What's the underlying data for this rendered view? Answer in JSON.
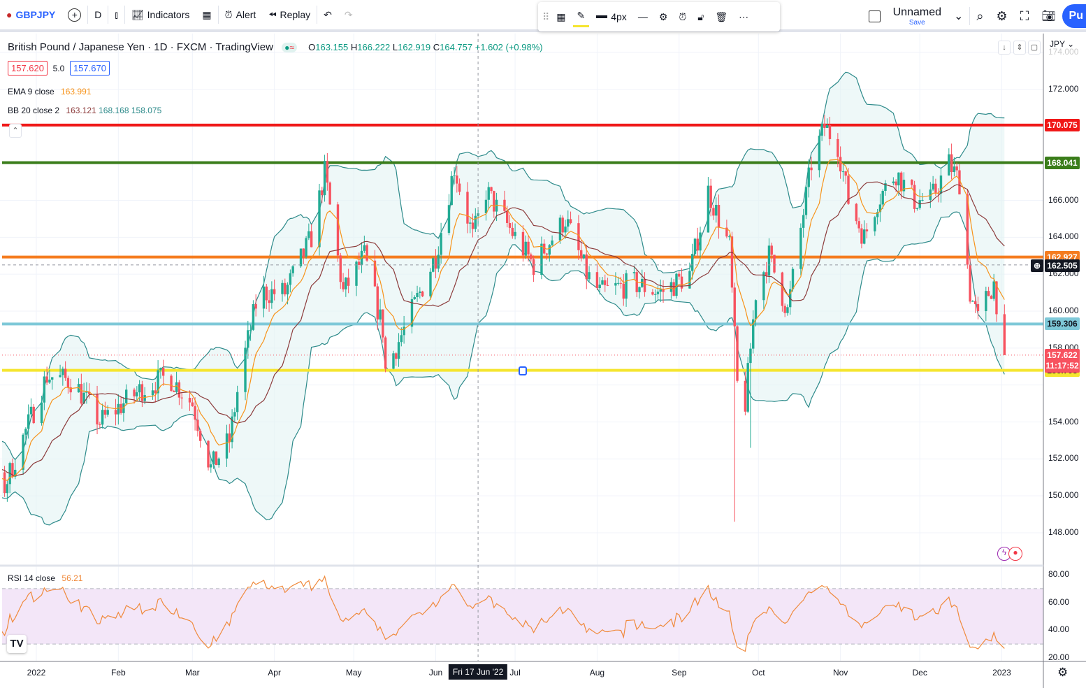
{
  "toolbar": {
    "symbol": "GBPJPY",
    "interval": "D",
    "indicators": "Indicators",
    "alert": "Alert",
    "replay": "Replay"
  },
  "drawing_toolbar": {
    "thickness": "4px"
  },
  "right_toolbar": {
    "layout_name": "Unnamed",
    "save": "Save",
    "publish": "Pu"
  },
  "legend": {
    "title": "British Pound / Japanese Yen · 1D · FXCM · TradingView",
    "ohlc": {
      "o_label": "O",
      "o": "163.155",
      "h_label": "H",
      "h": "166.222",
      "l_label": "L",
      "l": "162.919",
      "c_label": "C",
      "c": "164.757",
      "change": "+1.602 (+0.98%)"
    },
    "bid": "157.620",
    "spread": "5.0",
    "ask": "157.670",
    "ema": {
      "label": "EMA 9 close",
      "value": "163.991"
    },
    "bb": {
      "label": "BB 20 close 2",
      "basis": "163.121",
      "upper": "168.168",
      "lower": "158.075"
    },
    "rsi": {
      "label": "RSI 14 close",
      "value": "56.21"
    }
  },
  "price_axis": {
    "currency": "JPY",
    "labels": [
      "174.000",
      "172.000",
      "166.000",
      "164.000",
      "162.000",
      "160.000",
      "158.000",
      "154.000",
      "152.000",
      "150.000",
      "148.000"
    ]
  },
  "rsi_axis": {
    "labels": [
      "80.00",
      "60.00",
      "40.00",
      "20.00"
    ]
  },
  "hlines": [
    {
      "name": "red",
      "price": "170.075",
      "color": "#f01818"
    },
    {
      "name": "green",
      "price": "168.041",
      "color": "#3a7d1a"
    },
    {
      "name": "orange",
      "price": "162.927",
      "color": "#f57c1f"
    },
    {
      "name": "lightblue",
      "price": "159.306",
      "color": "#7ec8d8"
    },
    {
      "name": "yellow",
      "price": "156.798",
      "color": "#f5e530"
    }
  ],
  "crosshair": {
    "price": "162.505",
    "date_label": "Fri 17 Jun '22",
    "date": "2022-06-17"
  },
  "last_price": {
    "price": "157.622",
    "countdown": "11:17:52"
  },
  "time_axis": [
    {
      "label": "2022",
      "date": "2022-01-01"
    },
    {
      "label": "Feb",
      "date": "2022-02-01"
    },
    {
      "label": "Mar",
      "date": "2022-03-01"
    },
    {
      "label": "Apr",
      "date": "2022-04-01"
    },
    {
      "label": "May",
      "date": "2022-05-01"
    },
    {
      "label": "Jun",
      "date": "2022-06-01"
    },
    {
      "label": "Jul",
      "date": "2022-07-01"
    },
    {
      "label": "Aug",
      "date": "2022-08-01"
    },
    {
      "label": "Sep",
      "date": "2022-09-01"
    },
    {
      "label": "Oct",
      "date": "2022-10-01"
    },
    {
      "label": "Nov",
      "date": "2022-11-01"
    },
    {
      "label": "Dec",
      "date": "2022-12-01"
    },
    {
      "label": "2023",
      "date": "2023-01-01"
    }
  ],
  "chart_data": {
    "type": "candlestick",
    "symbol": "GBPJPY",
    "timeframe": "1D",
    "ylim": [
      147,
      174.5
    ],
    "rsi_ylim": [
      20,
      82
    ],
    "rsi_bands": [
      70,
      30
    ],
    "close_waypoints": [
      [
        "2021-11-15",
        153.5
      ],
      [
        "2021-12-01",
        151.5
      ],
      [
        "2021-12-20",
        150.5
      ],
      [
        "2022-01-05",
        156.5
      ],
      [
        "2022-01-15",
        156.2
      ],
      [
        "2022-01-25",
        154.0
      ],
      [
        "2022-02-10",
        155.8
      ],
      [
        "2022-02-20",
        156.5
      ],
      [
        "2022-03-01",
        155.0
      ],
      [
        "2022-03-08",
        151.5
      ],
      [
        "2022-03-15",
        153.0
      ],
      [
        "2022-03-19",
        156.5
      ],
      [
        "2022-03-26",
        161.0
      ],
      [
        "2022-04-05",
        161.0
      ],
      [
        "2022-04-15",
        164.0
      ],
      [
        "2022-04-20",
        167.5
      ],
      [
        "2022-04-27",
        161.0
      ],
      [
        "2022-05-05",
        163.0
      ],
      [
        "2022-05-12",
        159.0
      ],
      [
        "2022-05-13",
        156.8
      ],
      [
        "2022-05-20",
        159.0
      ],
      [
        "2022-06-01",
        163.0
      ],
      [
        "2022-06-08",
        167.8
      ],
      [
        "2022-06-15",
        164.0
      ],
      [
        "2022-06-20",
        166.5
      ],
      [
        "2022-07-01",
        164.0
      ],
      [
        "2022-07-08",
        162.5
      ],
      [
        "2022-07-20",
        165.0
      ],
      [
        "2022-07-28",
        162.0
      ],
      [
        "2022-08-02",
        161.0
      ],
      [
        "2022-08-15",
        161.5
      ],
      [
        "2022-08-25",
        161.0
      ],
      [
        "2022-09-05",
        162.0
      ],
      [
        "2022-09-12",
        166.5
      ],
      [
        "2022-09-20",
        163.5
      ],
      [
        "2022-09-23",
        156.0
      ],
      [
        "2022-09-26",
        155.0
      ],
      [
        "2022-09-30",
        161.0
      ],
      [
        "2022-10-05",
        163.0
      ],
      [
        "2022-10-12",
        160.0
      ],
      [
        "2022-10-21",
        168.0
      ],
      [
        "2022-10-26",
        170.0
      ],
      [
        "2022-10-31",
        169.0
      ],
      [
        "2022-11-04",
        166.0
      ],
      [
        "2022-11-10",
        164.0
      ],
      [
        "2022-11-15",
        166.0
      ],
      [
        "2022-11-22",
        167.5
      ],
      [
        "2022-11-29",
        166.0
      ],
      [
        "2022-12-05",
        166.0
      ],
      [
        "2022-12-12",
        168.0
      ],
      [
        "2022-12-16",
        167.0
      ],
      [
        "2022-12-20",
        161.0
      ],
      [
        "2022-12-23",
        159.5
      ],
      [
        "2022-12-27",
        161.0
      ],
      [
        "2022-12-29",
        161.5
      ],
      [
        "2023-01-02",
        157.6
      ]
    ],
    "extreme_lows": [
      [
        "2022-09-22",
        148.6
      ],
      [
        "2022-09-28",
        152.6
      ]
    ],
    "indicators": [
      "EMA 9",
      "BB 20 2",
      "RSI 14"
    ]
  },
  "colors": {
    "up": "#22ab94",
    "down": "#f7525f",
    "ema": "#f7931a",
    "bb_basis": "#8c3b3b",
    "bb_band": "#2e8b8b",
    "bb_fill": "#e3f3f3",
    "rsi": "#f08a3c",
    "rsi_fill": "#f3e6f8",
    "accent": "#2962ff"
  }
}
